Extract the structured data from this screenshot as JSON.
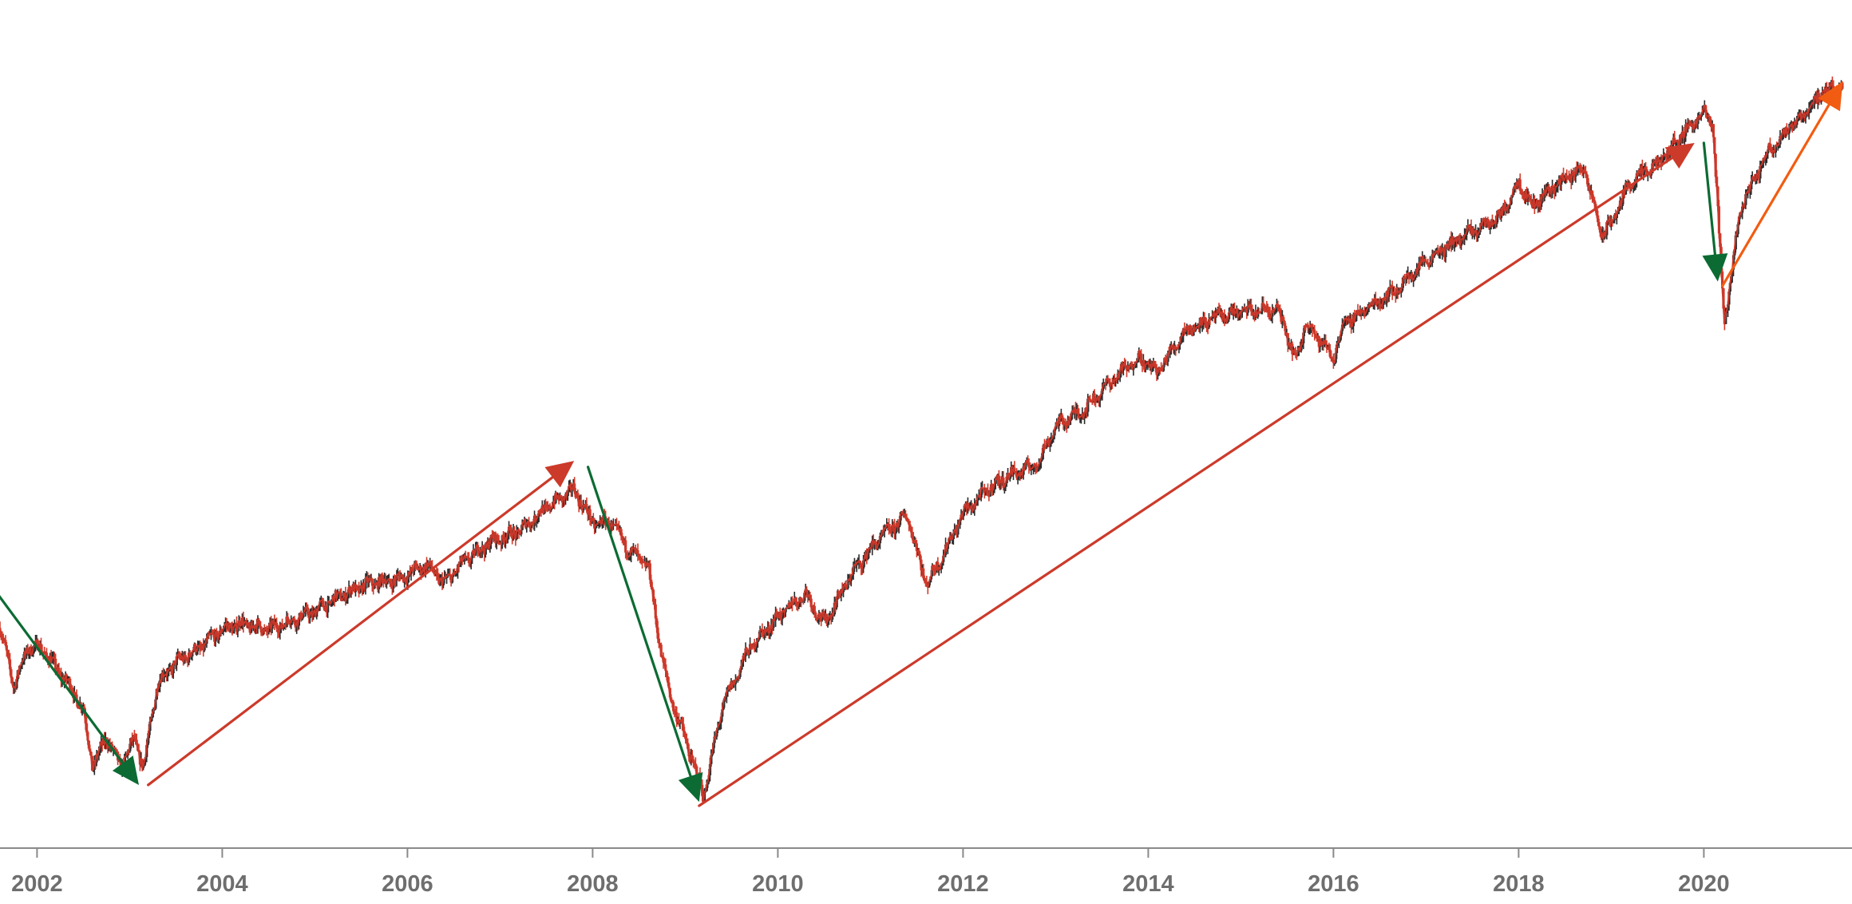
{
  "chart_data": {
    "type": "line",
    "title": "",
    "xlabel": "",
    "ylabel": "",
    "x_range": [
      2001.6,
      2021.6
    ],
    "y_range": [
      0,
      100
    ],
    "x_axis": {
      "ticks": [
        2002,
        2004,
        2006,
        2008,
        2010,
        2012,
        2014,
        2016,
        2018,
        2020
      ],
      "labels": [
        "2002",
        "2004",
        "2006",
        "2008",
        "2010",
        "2012",
        "2014",
        "2016",
        "2018",
        "2020"
      ]
    },
    "y_axis_visible": false,
    "grid": false,
    "series": [
      {
        "style": "candlestick",
        "color_up": "#2b2b2b",
        "color_down": "#d13a2a",
        "x": [
          2001.6,
          2001.75,
          2001.9,
          2002.05,
          2002.2,
          2002.35,
          2002.5,
          2002.6,
          2002.75,
          2002.9,
          2003.05,
          2003.15,
          2003.3,
          2003.5,
          2003.75,
          2004.0,
          2004.2,
          2004.5,
          2004.8,
          2005.0,
          2005.3,
          2005.6,
          2005.9,
          2006.2,
          2006.4,
          2006.6,
          2006.9,
          2007.2,
          2007.5,
          2007.8,
          2008.0,
          2008.2,
          2008.4,
          2008.6,
          2008.75,
          2008.85,
          2009.0,
          2009.2,
          2009.4,
          2009.7,
          2010.0,
          2010.3,
          2010.5,
          2010.8,
          2011.1,
          2011.4,
          2011.6,
          2011.75,
          2012.0,
          2012.3,
          2012.5,
          2012.8,
          2013.0,
          2013.3,
          2013.6,
          2013.9,
          2014.1,
          2014.4,
          2014.7,
          2015.0,
          2015.4,
          2015.6,
          2015.7,
          2016.0,
          2016.1,
          2016.4,
          2016.7,
          2017.0,
          2017.4,
          2017.8,
          2018.0,
          2018.15,
          2018.4,
          2018.7,
          2018.9,
          2019.0,
          2019.2,
          2019.5,
          2019.8,
          2020.0,
          2020.1,
          2020.22,
          2020.4,
          2020.7,
          2021.0,
          2021.3,
          2021.5
        ],
        "y": [
          28.6,
          21.1,
          26.0,
          26.0,
          23.4,
          21.1,
          18.0,
          10.5,
          14.4,
          10.5,
          14.1,
          10.5,
          21.4,
          24.1,
          25.9,
          28.4,
          29.1,
          28.4,
          29.8,
          30.8,
          32.9,
          34.4,
          34.9,
          36.8,
          34.4,
          37.1,
          39.8,
          41.1,
          44.2,
          46.6,
          42.2,
          42.2,
          38.6,
          36.6,
          24.5,
          19.3,
          14.1,
          6.8,
          18.4,
          26.1,
          30.0,
          33.1,
          29.1,
          35.7,
          40.3,
          43.2,
          34.3,
          37.2,
          43.5,
          46.9,
          48.4,
          49.8,
          54.8,
          56.9,
          60.7,
          63.7,
          61.8,
          67.2,
          68.8,
          69.7,
          69.9,
          63.1,
          68.4,
          63.6,
          67.9,
          70.4,
          72.7,
          76.4,
          79.4,
          82.0,
          86.6,
          83.4,
          86.2,
          88.4,
          79.6,
          81.2,
          86.4,
          88.8,
          93.2,
          95.5,
          93.8,
          68.1,
          83.3,
          90.6,
          94.5,
          98.2,
          98.9
        ]
      }
    ],
    "annotations": [
      {
        "type": "arrow",
        "color": "#0b6b33",
        "from": [
          2001.55,
          33.4
        ],
        "to": [
          2003.1,
          8.2
        ]
      },
      {
        "type": "arrow",
        "color": "#cc3a2a",
        "from": [
          2003.2,
          8.2
        ],
        "to": [
          2007.8,
          50.3
        ]
      },
      {
        "type": "arrow",
        "color": "#0b6b33",
        "from": [
          2007.95,
          49.5
        ],
        "to": [
          2009.15,
          6.0
        ]
      },
      {
        "type": "arrow",
        "color": "#cc3a2a",
        "from": [
          2009.15,
          5.5
        ],
        "to": [
          2019.9,
          91.6
        ]
      },
      {
        "type": "arrow",
        "color": "#0b6b33",
        "from": [
          2020.0,
          91.6
        ],
        "to": [
          2020.15,
          73.6
        ]
      },
      {
        "type": "arrow",
        "color": "#f25c12",
        "from": [
          2020.2,
          73.0
        ],
        "to": [
          2021.5,
          99.6
        ]
      }
    ]
  }
}
